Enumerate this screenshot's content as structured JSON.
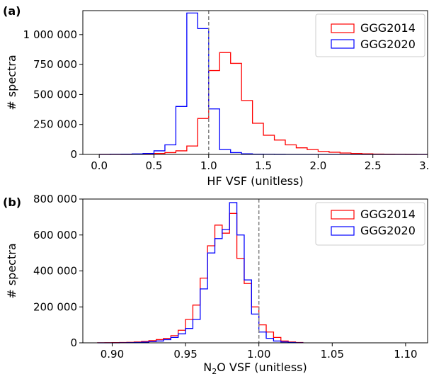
{
  "chart_data": [
    {
      "type": "histogram",
      "panel_label": "(a)",
      "xlabel": "HF VSF (unitless)",
      "ylabel": "# spectra",
      "xlim": [
        -0.15,
        3.0
      ],
      "ylim": [
        0,
        1200000
      ],
      "xticks": [
        "0.0",
        "0.5",
        "1.0",
        "1.5",
        "2.0",
        "2.5",
        "3.0"
      ],
      "xtick_values": [
        0.0,
        0.5,
        1.0,
        1.5,
        2.0,
        2.5,
        3.0
      ],
      "yticks": [
        "0",
        "250 000",
        "500 000",
        "750 000",
        "1 000 000"
      ],
      "ytick_values": [
        0,
        250000,
        500000,
        750000,
        1000000
      ],
      "reference_line_x": 1.0,
      "legend_position": "top-right",
      "bin_edges": [
        0.0,
        0.1,
        0.2,
        0.3,
        0.4,
        0.5,
        0.6,
        0.7,
        0.8,
        0.9,
        1.0,
        1.1,
        1.2,
        1.3,
        1.4,
        1.5,
        1.6,
        1.7,
        1.8,
        1.9,
        2.0,
        2.1,
        2.2,
        2.3,
        2.4,
        2.5,
        2.6,
        2.7,
        2.8,
        2.9,
        3.0
      ],
      "series": [
        {
          "name": "GGG2014",
          "color": "#ff0000",
          "values": [
            0,
            0,
            0,
            2000,
            4000,
            8000,
            15000,
            30000,
            70000,
            300000,
            700000,
            850000,
            760000,
            450000,
            260000,
            160000,
            120000,
            80000,
            55000,
            40000,
            25000,
            18000,
            12000,
            8000,
            5000,
            3000,
            2000,
            1000,
            500,
            200
          ]
        },
        {
          "name": "GGG2020",
          "color": "#0000ff",
          "values": [
            0,
            1000,
            2000,
            4000,
            8000,
            30000,
            80000,
            400000,
            1180000,
            1050000,
            380000,
            40000,
            15000,
            5000,
            2000,
            1000,
            500,
            200,
            0,
            0,
            0,
            0,
            0,
            0,
            0,
            0,
            0,
            0,
            0,
            0
          ]
        }
      ]
    },
    {
      "type": "histogram",
      "panel_label": "(b)",
      "xlabel_prefix": "N",
      "xlabel_sub": "2",
      "xlabel_suffix": "O VSF (unitless)",
      "ylabel": "# spectra",
      "xlim": [
        0.88,
        1.115
      ],
      "ylim": [
        0,
        800000
      ],
      "xticks": [
        "0.90",
        "0.95",
        "1.00",
        "1.05",
        "1.10"
      ],
      "xtick_values": [
        0.9,
        0.95,
        1.0,
        1.05,
        1.1
      ],
      "yticks": [
        "0",
        "200 000",
        "400 000",
        "600 000",
        "800 000"
      ],
      "ytick_values": [
        0,
        200000,
        400000,
        600000,
        800000
      ],
      "reference_line_x": 1.0,
      "legend_position": "top-right",
      "bin_edges": [
        0.89,
        0.895,
        0.9,
        0.905,
        0.91,
        0.915,
        0.92,
        0.925,
        0.93,
        0.935,
        0.94,
        0.945,
        0.95,
        0.955,
        0.96,
        0.965,
        0.97,
        0.975,
        0.98,
        0.985,
        0.99,
        0.995,
        1.0,
        1.005,
        1.01,
        1.015,
        1.02,
        1.025,
        1.03
      ],
      "series": [
        {
          "name": "GGG2014",
          "color": "#ff0000",
          "values": [
            500,
            1000,
            1500,
            2000,
            3000,
            5000,
            8000,
            12000,
            18000,
            25000,
            40000,
            70000,
            130000,
            210000,
            360000,
            540000,
            655000,
            610000,
            720000,
            470000,
            330000,
            200000,
            100000,
            60000,
            30000,
            10000,
            5000,
            2000
          ]
        },
        {
          "name": "GGG2020",
          "color": "#0000ff",
          "values": [
            0,
            0,
            0,
            500,
            1000,
            2000,
            4000,
            7000,
            10000,
            18000,
            30000,
            50000,
            80000,
            130000,
            300000,
            500000,
            580000,
            630000,
            780000,
            600000,
            350000,
            160000,
            60000,
            25000,
            10000,
            5000,
            2000,
            500
          ]
        }
      ]
    }
  ]
}
